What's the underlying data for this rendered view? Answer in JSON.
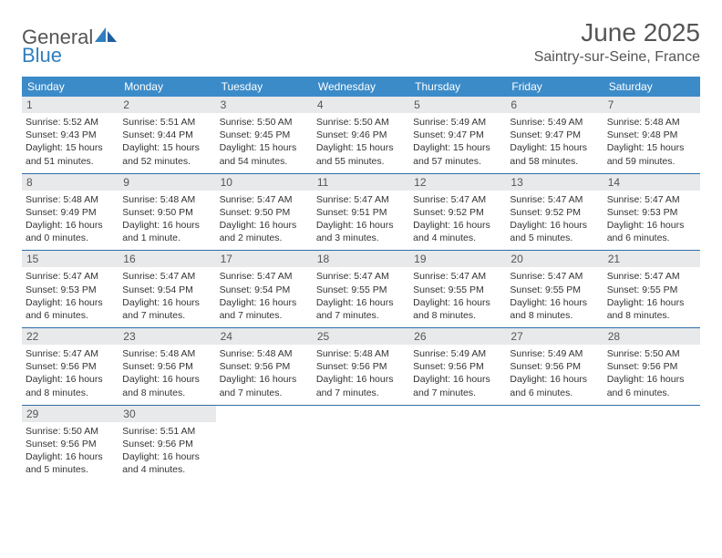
{
  "logo": {
    "textGray": "General",
    "textBlue": "Blue"
  },
  "title": {
    "month": "June 2025",
    "location": "Saintry-sur-Seine, France"
  },
  "colors": {
    "headerBlue": "#3b8bc9",
    "rowBorder": "#2f6fa8",
    "dayNumBg": "#e8e9ea",
    "textGray": "#555555",
    "logoBlue": "#2f7fbf"
  },
  "daysOfWeek": [
    "Sunday",
    "Monday",
    "Tuesday",
    "Wednesday",
    "Thursday",
    "Friday",
    "Saturday"
  ],
  "weeks": [
    [
      {
        "n": "1",
        "sr": "Sunrise: 5:52 AM",
        "ss": "Sunset: 9:43 PM",
        "d1": "Daylight: 15 hours",
        "d2": "and 51 minutes."
      },
      {
        "n": "2",
        "sr": "Sunrise: 5:51 AM",
        "ss": "Sunset: 9:44 PM",
        "d1": "Daylight: 15 hours",
        "d2": "and 52 minutes."
      },
      {
        "n": "3",
        "sr": "Sunrise: 5:50 AM",
        "ss": "Sunset: 9:45 PM",
        "d1": "Daylight: 15 hours",
        "d2": "and 54 minutes."
      },
      {
        "n": "4",
        "sr": "Sunrise: 5:50 AM",
        "ss": "Sunset: 9:46 PM",
        "d1": "Daylight: 15 hours",
        "d2": "and 55 minutes."
      },
      {
        "n": "5",
        "sr": "Sunrise: 5:49 AM",
        "ss": "Sunset: 9:47 PM",
        "d1": "Daylight: 15 hours",
        "d2": "and 57 minutes."
      },
      {
        "n": "6",
        "sr": "Sunrise: 5:49 AM",
        "ss": "Sunset: 9:47 PM",
        "d1": "Daylight: 15 hours",
        "d2": "and 58 minutes."
      },
      {
        "n": "7",
        "sr": "Sunrise: 5:48 AM",
        "ss": "Sunset: 9:48 PM",
        "d1": "Daylight: 15 hours",
        "d2": "and 59 minutes."
      }
    ],
    [
      {
        "n": "8",
        "sr": "Sunrise: 5:48 AM",
        "ss": "Sunset: 9:49 PM",
        "d1": "Daylight: 16 hours",
        "d2": "and 0 minutes."
      },
      {
        "n": "9",
        "sr": "Sunrise: 5:48 AM",
        "ss": "Sunset: 9:50 PM",
        "d1": "Daylight: 16 hours",
        "d2": "and 1 minute."
      },
      {
        "n": "10",
        "sr": "Sunrise: 5:47 AM",
        "ss": "Sunset: 9:50 PM",
        "d1": "Daylight: 16 hours",
        "d2": "and 2 minutes."
      },
      {
        "n": "11",
        "sr": "Sunrise: 5:47 AM",
        "ss": "Sunset: 9:51 PM",
        "d1": "Daylight: 16 hours",
        "d2": "and 3 minutes."
      },
      {
        "n": "12",
        "sr": "Sunrise: 5:47 AM",
        "ss": "Sunset: 9:52 PM",
        "d1": "Daylight: 16 hours",
        "d2": "and 4 minutes."
      },
      {
        "n": "13",
        "sr": "Sunrise: 5:47 AM",
        "ss": "Sunset: 9:52 PM",
        "d1": "Daylight: 16 hours",
        "d2": "and 5 minutes."
      },
      {
        "n": "14",
        "sr": "Sunrise: 5:47 AM",
        "ss": "Sunset: 9:53 PM",
        "d1": "Daylight: 16 hours",
        "d2": "and 6 minutes."
      }
    ],
    [
      {
        "n": "15",
        "sr": "Sunrise: 5:47 AM",
        "ss": "Sunset: 9:53 PM",
        "d1": "Daylight: 16 hours",
        "d2": "and 6 minutes."
      },
      {
        "n": "16",
        "sr": "Sunrise: 5:47 AM",
        "ss": "Sunset: 9:54 PM",
        "d1": "Daylight: 16 hours",
        "d2": "and 7 minutes."
      },
      {
        "n": "17",
        "sr": "Sunrise: 5:47 AM",
        "ss": "Sunset: 9:54 PM",
        "d1": "Daylight: 16 hours",
        "d2": "and 7 minutes."
      },
      {
        "n": "18",
        "sr": "Sunrise: 5:47 AM",
        "ss": "Sunset: 9:55 PM",
        "d1": "Daylight: 16 hours",
        "d2": "and 7 minutes."
      },
      {
        "n": "19",
        "sr": "Sunrise: 5:47 AM",
        "ss": "Sunset: 9:55 PM",
        "d1": "Daylight: 16 hours",
        "d2": "and 8 minutes."
      },
      {
        "n": "20",
        "sr": "Sunrise: 5:47 AM",
        "ss": "Sunset: 9:55 PM",
        "d1": "Daylight: 16 hours",
        "d2": "and 8 minutes."
      },
      {
        "n": "21",
        "sr": "Sunrise: 5:47 AM",
        "ss": "Sunset: 9:55 PM",
        "d1": "Daylight: 16 hours",
        "d2": "and 8 minutes."
      }
    ],
    [
      {
        "n": "22",
        "sr": "Sunrise: 5:47 AM",
        "ss": "Sunset: 9:56 PM",
        "d1": "Daylight: 16 hours",
        "d2": "and 8 minutes."
      },
      {
        "n": "23",
        "sr": "Sunrise: 5:48 AM",
        "ss": "Sunset: 9:56 PM",
        "d1": "Daylight: 16 hours",
        "d2": "and 8 minutes."
      },
      {
        "n": "24",
        "sr": "Sunrise: 5:48 AM",
        "ss": "Sunset: 9:56 PM",
        "d1": "Daylight: 16 hours",
        "d2": "and 7 minutes."
      },
      {
        "n": "25",
        "sr": "Sunrise: 5:48 AM",
        "ss": "Sunset: 9:56 PM",
        "d1": "Daylight: 16 hours",
        "d2": "and 7 minutes."
      },
      {
        "n": "26",
        "sr": "Sunrise: 5:49 AM",
        "ss": "Sunset: 9:56 PM",
        "d1": "Daylight: 16 hours",
        "d2": "and 7 minutes."
      },
      {
        "n": "27",
        "sr": "Sunrise: 5:49 AM",
        "ss": "Sunset: 9:56 PM",
        "d1": "Daylight: 16 hours",
        "d2": "and 6 minutes."
      },
      {
        "n": "28",
        "sr": "Sunrise: 5:50 AM",
        "ss": "Sunset: 9:56 PM",
        "d1": "Daylight: 16 hours",
        "d2": "and 6 minutes."
      }
    ],
    [
      {
        "n": "29",
        "sr": "Sunrise: 5:50 AM",
        "ss": "Sunset: 9:56 PM",
        "d1": "Daylight: 16 hours",
        "d2": "and 5 minutes."
      },
      {
        "n": "30",
        "sr": "Sunrise: 5:51 AM",
        "ss": "Sunset: 9:56 PM",
        "d1": "Daylight: 16 hours",
        "d2": "and 4 minutes."
      },
      null,
      null,
      null,
      null,
      null
    ]
  ]
}
